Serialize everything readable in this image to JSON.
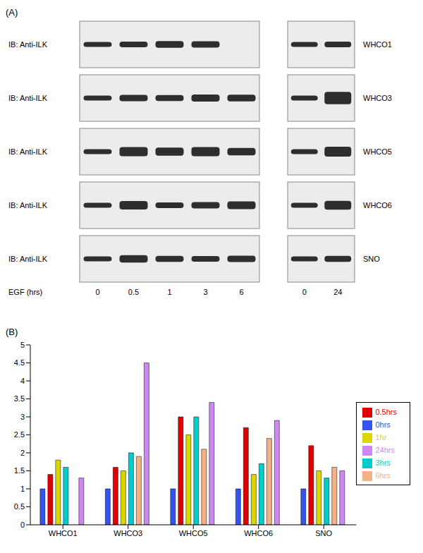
{
  "panel_a": {
    "label": "(A)",
    "rows": [
      {
        "antibody": "IB: Anti-ILK",
        "cell_line": "WHCO1"
      },
      {
        "antibody": "IB: Anti-ILK",
        "cell_line": "WHCO3"
      },
      {
        "antibody": "IB: Anti-ILK",
        "cell_line": "WHCO5"
      },
      {
        "antibody": "IB: Anti-ILK",
        "cell_line": "WHCO6"
      },
      {
        "antibody": "IB: Anti-ILK",
        "cell_line": "SNO"
      }
    ],
    "x_label": "EGF (hrs)",
    "lanes_left": [
      0,
      0.5,
      1,
      3,
      6
    ],
    "lanes_right": [
      0,
      24
    ]
  },
  "chart_data": {
    "type": "bar",
    "panel_label": "(B)",
    "categories": [
      "WHCO1",
      "WHCO3",
      "WHCO5",
      "WHCO6",
      "SNO"
    ],
    "series": [
      {
        "name": "0hrs",
        "color": "#3355ee",
        "values": [
          1,
          1,
          1,
          1,
          1
        ]
      },
      {
        "name": "0.5hrs",
        "color": "#e00000",
        "values": [
          1.4,
          1.6,
          3.0,
          2.7,
          2.2
        ]
      },
      {
        "name": "1hr",
        "color": "#d8d800",
        "values": [
          1.8,
          1.5,
          2.5,
          1.4,
          1.5
        ]
      },
      {
        "name": "3hrs",
        "color": "#00cccc",
        "values": [
          1.6,
          2.0,
          3.0,
          1.7,
          1.3
        ]
      },
      {
        "name": "6hrs",
        "color": "#f4b183",
        "values": [
          null,
          1.9,
          2.1,
          2.4,
          1.6
        ]
      },
      {
        "name": "24hrs",
        "color": "#cc88ee",
        "values": [
          1.3,
          4.5,
          3.4,
          2.9,
          1.5
        ]
      }
    ],
    "ylim": [
      0,
      5
    ],
    "yticks": [
      0,
      0.5,
      1,
      1.5,
      2,
      2.5,
      3,
      3.5,
      4,
      4.5,
      5
    ],
    "grid": false,
    "legend": "right"
  }
}
